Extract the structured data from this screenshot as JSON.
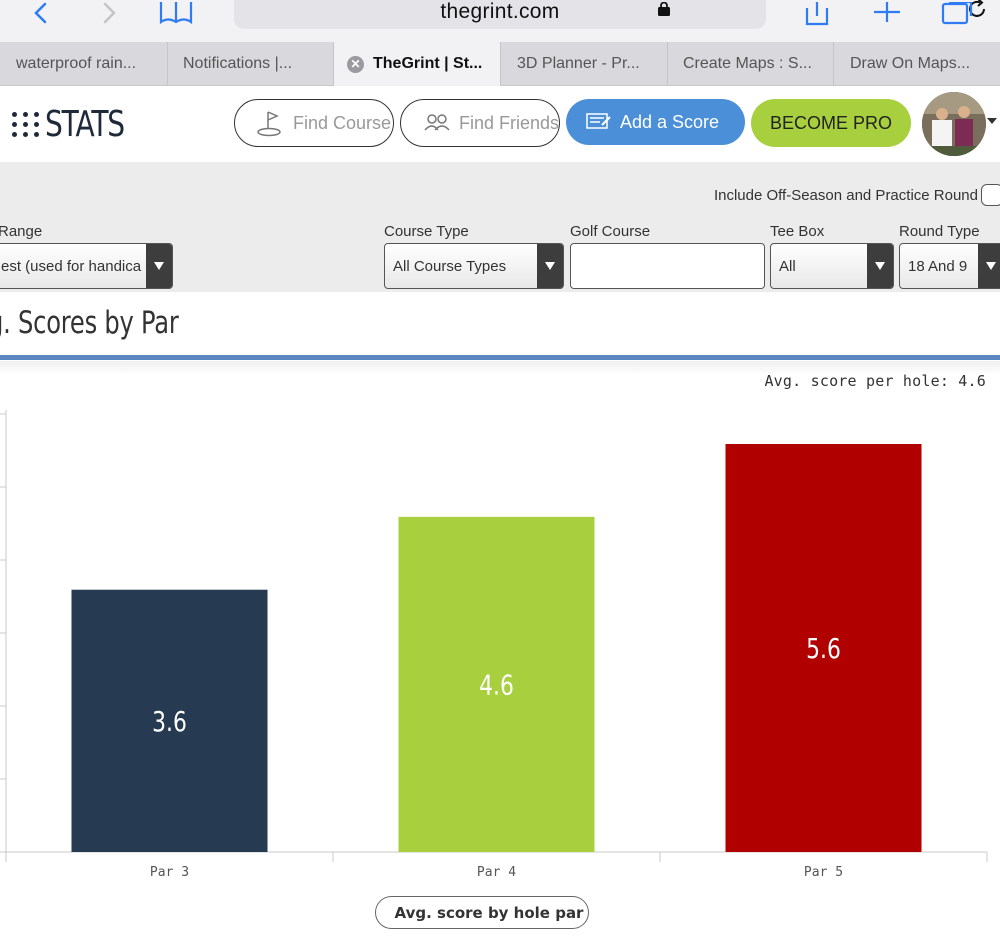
{
  "browser": {
    "url": "thegrint.com",
    "tabs": [
      {
        "title": "waterproof rain...",
        "active": false
      },
      {
        "title": "Notifications |...",
        "active": false
      },
      {
        "title": "TheGrint | St...",
        "active": true
      },
      {
        "title": "3D Planner - Pr...",
        "active": false
      },
      {
        "title": "Create Maps : S...",
        "active": false
      },
      {
        "title": "Draw On Maps...",
        "active": false
      }
    ]
  },
  "header": {
    "logo_text": "STATS",
    "find_course": "Find Course",
    "find_friends": "Find Friends",
    "add_score": "Add a Score",
    "become_pro": "BECOME PRO"
  },
  "filters": {
    "offseason_label": "Include Off-Season and Practice Round",
    "range_label": "Range",
    "range_value": "est (used for handica",
    "course_type_label": "Course Type",
    "course_type_value": "All Course Types",
    "golf_course_label": "Golf Course",
    "golf_course_value": "",
    "tee_box_label": "Tee Box",
    "tee_box_value": "All",
    "round_type_label": "Round Type",
    "round_type_value": "18 And 9"
  },
  "section": {
    "title": "g. Scores by Par",
    "avg_note": "Avg. score per hole: 4.6"
  },
  "chart_data": {
    "type": "bar",
    "categories": [
      "Par 3",
      "Par 4",
      "Par 5"
    ],
    "values": [
      3.6,
      4.6,
      5.6
    ],
    "data_labels": [
      "3.6",
      "4.6",
      "5.6"
    ],
    "colors": [
      "#263a52",
      "#a8cf3e",
      "#b00000"
    ],
    "legend": "Avg. score by hole par",
    "legend_placement": "bottom-center",
    "grid": false
  }
}
